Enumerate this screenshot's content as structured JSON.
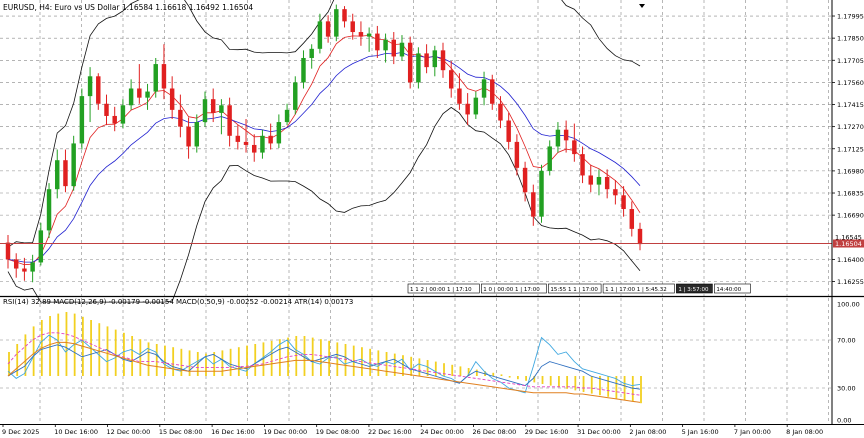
{
  "header": {
    "title": "EURUSD, H4: Euro vs US Dollar  1.16584 1.16618 1.16492 1.16504"
  },
  "main_panel": {
    "price_ticks": [
      "1.17995",
      "1.17850",
      "1.17705",
      "1.17560",
      "1.17415",
      "1.17270",
      "1.17125",
      "1.16980",
      "1.16835",
      "1.16690",
      "1.16400",
      "1.16255"
    ],
    "current_price_label": "1.16504",
    "level_label": "1.16545",
    "info_boxes": [
      {
        "text": "1 1 2 | 00:00 1 | 17:10",
        "dark": false
      },
      {
        "text": "1 0 | 00:00 1 | 17:00",
        "dark": false
      },
      {
        "text": "15:55 1 1 | 17:00",
        "dark": false
      },
      {
        "text": "1 1 | 17:00 1 | 5:45.32",
        "dark": false
      },
      {
        "text": "1 | 3:57:00",
        "dark": true
      },
      {
        "text": "14:40:00",
        "dark": false
      }
    ]
  },
  "sub_panel": {
    "title": "RSI(14) 32.89 MACD(12,26,9) -0.00179 -0.00154 MACD(0.50,9) -0.00252 -0.00214 ATR(14) 0.00173",
    "ticks": [
      "100.00",
      "70.00",
      "30.00",
      "0.00"
    ]
  },
  "time_axis": {
    "labels": [
      "9 Dec 2025",
      "10 Dec 16:00",
      "12 Dec 00:00",
      "15 Dec 08:00",
      "16 Dec 16:00",
      "19 Dec 00:00",
      "19 Dec 08:00",
      "22 Dec 16:00",
      "24 Dec 00:00",
      "26 Dec 08:00",
      "29 Dec 16:00",
      "31 Dec 00:00",
      "2 Jan 08:00",
      "5 Jan 16:00",
      "7 Jan 00:00",
      "8 Jan 08:00"
    ]
  },
  "chart_data": {
    "type": "candlestick",
    "symbol": "EURUSD",
    "timeframe": "H4",
    "ohlc_last": {
      "open": 1.16584,
      "high": 1.16618,
      "low": 1.16492,
      "close": 1.16504
    },
    "ylim": [
      1.1616,
      1.181
    ],
    "candles": [
      {
        "o": 1.1651,
        "h": 1.1656,
        "l": 1.1634,
        "c": 1.164
      },
      {
        "o": 1.164,
        "h": 1.1644,
        "l": 1.1628,
        "c": 1.1634
      },
      {
        "o": 1.1634,
        "h": 1.1641,
        "l": 1.1626,
        "c": 1.1632
      },
      {
        "o": 1.1632,
        "h": 1.1643,
        "l": 1.1625,
        "c": 1.1638
      },
      {
        "o": 1.1638,
        "h": 1.1664,
        "l": 1.1636,
        "c": 1.1659
      },
      {
        "o": 1.1659,
        "h": 1.169,
        "l": 1.1654,
        "c": 1.1686
      },
      {
        "o": 1.1686,
        "h": 1.1712,
        "l": 1.168,
        "c": 1.1705
      },
      {
        "o": 1.1705,
        "h": 1.1712,
        "l": 1.1684,
        "c": 1.1688
      },
      {
        "o": 1.1688,
        "h": 1.1721,
        "l": 1.1685,
        "c": 1.1716
      },
      {
        "o": 1.1716,
        "h": 1.1752,
        "l": 1.1712,
        "c": 1.1747
      },
      {
        "o": 1.1747,
        "h": 1.1766,
        "l": 1.173,
        "c": 1.176
      },
      {
        "o": 1.176,
        "h": 1.1762,
        "l": 1.1738,
        "c": 1.1742
      },
      {
        "o": 1.1742,
        "h": 1.1748,
        "l": 1.1728,
        "c": 1.1734
      },
      {
        "o": 1.1734,
        "h": 1.174,
        "l": 1.1724,
        "c": 1.1729
      },
      {
        "o": 1.1729,
        "h": 1.1745,
        "l": 1.1726,
        "c": 1.1741
      },
      {
        "o": 1.1741,
        "h": 1.1758,
        "l": 1.1738,
        "c": 1.1752
      },
      {
        "o": 1.1752,
        "h": 1.1768,
        "l": 1.1742,
        "c": 1.1746
      },
      {
        "o": 1.1746,
        "h": 1.1755,
        "l": 1.1738,
        "c": 1.175
      },
      {
        "o": 1.175,
        "h": 1.1772,
        "l": 1.1746,
        "c": 1.1768
      },
      {
        "o": 1.1768,
        "h": 1.1781,
        "l": 1.1745,
        "c": 1.1752
      },
      {
        "o": 1.1752,
        "h": 1.176,
        "l": 1.1732,
        "c": 1.1738
      },
      {
        "o": 1.1738,
        "h": 1.1748,
        "l": 1.172,
        "c": 1.1727
      },
      {
        "o": 1.1727,
        "h": 1.1733,
        "l": 1.1706,
        "c": 1.1714
      },
      {
        "o": 1.1714,
        "h": 1.1735,
        "l": 1.171,
        "c": 1.173
      },
      {
        "o": 1.173,
        "h": 1.175,
        "l": 1.1727,
        "c": 1.1745
      },
      {
        "o": 1.1745,
        "h": 1.1752,
        "l": 1.173,
        "c": 1.1736
      },
      {
        "o": 1.1736,
        "h": 1.1745,
        "l": 1.1722,
        "c": 1.1741
      },
      {
        "o": 1.1741,
        "h": 1.1746,
        "l": 1.1714,
        "c": 1.1721
      },
      {
        "o": 1.1721,
        "h": 1.1728,
        "l": 1.1712,
        "c": 1.1717
      },
      {
        "o": 1.1717,
        "h": 1.1732,
        "l": 1.171,
        "c": 1.1715
      },
      {
        "o": 1.1715,
        "h": 1.1722,
        "l": 1.1704,
        "c": 1.171
      },
      {
        "o": 1.171,
        "h": 1.1725,
        "l": 1.1706,
        "c": 1.1721
      },
      {
        "o": 1.1721,
        "h": 1.1729,
        "l": 1.1712,
        "c": 1.1716
      },
      {
        "o": 1.1716,
        "h": 1.1735,
        "l": 1.1713,
        "c": 1.173
      },
      {
        "o": 1.173,
        "h": 1.1742,
        "l": 1.1728,
        "c": 1.1738
      },
      {
        "o": 1.1738,
        "h": 1.176,
        "l": 1.1735,
        "c": 1.1756
      },
      {
        "o": 1.1756,
        "h": 1.1777,
        "l": 1.1752,
        "c": 1.1772
      },
      {
        "o": 1.1772,
        "h": 1.1781,
        "l": 1.1765,
        "c": 1.1778
      },
      {
        "o": 1.1778,
        "h": 1.1801,
        "l": 1.1775,
        "c": 1.1796
      },
      {
        "o": 1.1796,
        "h": 1.18,
        "l": 1.1782,
        "c": 1.1786
      },
      {
        "o": 1.1786,
        "h": 1.1807,
        "l": 1.1783,
        "c": 1.1804
      },
      {
        "o": 1.1804,
        "h": 1.1806,
        "l": 1.1792,
        "c": 1.1796
      },
      {
        "o": 1.1796,
        "h": 1.1801,
        "l": 1.1784,
        "c": 1.1789
      },
      {
        "o": 1.1789,
        "h": 1.1796,
        "l": 1.178,
        "c": 1.1786
      },
      {
        "o": 1.1786,
        "h": 1.1792,
        "l": 1.1776,
        "c": 1.1788
      },
      {
        "o": 1.1788,
        "h": 1.1793,
        "l": 1.1772,
        "c": 1.1777
      },
      {
        "o": 1.1777,
        "h": 1.1788,
        "l": 1.1769,
        "c": 1.1784
      },
      {
        "o": 1.1784,
        "h": 1.1789,
        "l": 1.1768,
        "c": 1.1773
      },
      {
        "o": 1.1773,
        "h": 1.1787,
        "l": 1.177,
        "c": 1.1782
      },
      {
        "o": 1.1782,
        "h": 1.1786,
        "l": 1.1752,
        "c": 1.1756
      },
      {
        "o": 1.1756,
        "h": 1.1779,
        "l": 1.1752,
        "c": 1.1775
      },
      {
        "o": 1.1775,
        "h": 1.1781,
        "l": 1.1762,
        "c": 1.1766
      },
      {
        "o": 1.1766,
        "h": 1.178,
        "l": 1.176,
        "c": 1.1777
      },
      {
        "o": 1.1777,
        "h": 1.1782,
        "l": 1.1759,
        "c": 1.1764
      },
      {
        "o": 1.1764,
        "h": 1.177,
        "l": 1.1746,
        "c": 1.1752
      },
      {
        "o": 1.1752,
        "h": 1.1762,
        "l": 1.1738,
        "c": 1.1742
      },
      {
        "o": 1.1742,
        "h": 1.1749,
        "l": 1.1728,
        "c": 1.1735
      },
      {
        "o": 1.1735,
        "h": 1.175,
        "l": 1.1732,
        "c": 1.1746
      },
      {
        "o": 1.1746,
        "h": 1.1763,
        "l": 1.1741,
        "c": 1.1758
      },
      {
        "o": 1.1758,
        "h": 1.1761,
        "l": 1.1738,
        "c": 1.1742
      },
      {
        "o": 1.1742,
        "h": 1.1747,
        "l": 1.1726,
        "c": 1.1731
      },
      {
        "o": 1.1731,
        "h": 1.1736,
        "l": 1.1712,
        "c": 1.1717
      },
      {
        "o": 1.1717,
        "h": 1.1722,
        "l": 1.1695,
        "c": 1.17
      },
      {
        "o": 1.17,
        "h": 1.1704,
        "l": 1.1678,
        "c": 1.1684
      },
      {
        "o": 1.1684,
        "h": 1.1689,
        "l": 1.1662,
        "c": 1.1668
      },
      {
        "o": 1.1668,
        "h": 1.1702,
        "l": 1.1664,
        "c": 1.1698
      },
      {
        "o": 1.1698,
        "h": 1.1718,
        "l": 1.1695,
        "c": 1.1714
      },
      {
        "o": 1.1714,
        "h": 1.173,
        "l": 1.171,
        "c": 1.1725
      },
      {
        "o": 1.1725,
        "h": 1.1731,
        "l": 1.171,
        "c": 1.1718
      },
      {
        "o": 1.1718,
        "h": 1.1729,
        "l": 1.1704,
        "c": 1.1709
      },
      {
        "o": 1.1709,
        "h": 1.1714,
        "l": 1.169,
        "c": 1.1695
      },
      {
        "o": 1.1695,
        "h": 1.1702,
        "l": 1.1684,
        "c": 1.1689
      },
      {
        "o": 1.1689,
        "h": 1.1699,
        "l": 1.1682,
        "c": 1.1694
      },
      {
        "o": 1.1694,
        "h": 1.1699,
        "l": 1.168,
        "c": 1.1686
      },
      {
        "o": 1.1686,
        "h": 1.1692,
        "l": 1.1676,
        "c": 1.1682
      },
      {
        "o": 1.1682,
        "h": 1.1688,
        "l": 1.1668,
        "c": 1.1673
      },
      {
        "o": 1.1673,
        "h": 1.1678,
        "l": 1.1655,
        "c": 1.166
      },
      {
        "o": 1.166,
        "h": 1.1664,
        "l": 1.1646,
        "c": 1.165
      }
    ],
    "main_series_colors": {
      "bull": "#22a022",
      "bear": "#e02020",
      "bollinger": "#111111",
      "ma_fast": "#e02020",
      "ma_slow": "#2020d0",
      "price_line": "#c04040"
    },
    "macd_hist": [
      30,
      40,
      52,
      62,
      70,
      75,
      78,
      80,
      78,
      74,
      70,
      66,
      62,
      58,
      54,
      50,
      46,
      42,
      40,
      38,
      36,
      34,
      32,
      30,
      28,
      30,
      32,
      34,
      36,
      38,
      40,
      42,
      44,
      46,
      48,
      50,
      50,
      48,
      46,
      44,
      42,
      40,
      38,
      36,
      34,
      32,
      30,
      28,
      26,
      24,
      22,
      20,
      18,
      16,
      14,
      12,
      10,
      8,
      6,
      4,
      2,
      -2,
      -4,
      -6,
      -8,
      -10,
      -12,
      -14,
      -16,
      -18,
      -20,
      -22,
      -24,
      -26,
      -28,
      -30,
      -32,
      -34
    ],
    "rsi": [
      44,
      38,
      42,
      55,
      68,
      74,
      70,
      60,
      66,
      70,
      64,
      58,
      52,
      55,
      60,
      62,
      58,
      63,
      60,
      50,
      46,
      44,
      48,
      52,
      56,
      50,
      54,
      48,
      46,
      44,
      50,
      55,
      60,
      66,
      70,
      62,
      58,
      52,
      50,
      55,
      56,
      50,
      52,
      54,
      50,
      48,
      52,
      50,
      54,
      45,
      50,
      48,
      44,
      40,
      38,
      34,
      40,
      52,
      44,
      38,
      35,
      30,
      28,
      26,
      48,
      72,
      66,
      58,
      60,
      52,
      46,
      44,
      42,
      40,
      38,
      34,
      32,
      33
    ],
    "line2": [
      40,
      44,
      48,
      56,
      62,
      64,
      66,
      64,
      60,
      56,
      58,
      60,
      62,
      58,
      54,
      52,
      56,
      60,
      58,
      52,
      48,
      46,
      44,
      50,
      56,
      58,
      54,
      50,
      48,
      46,
      50,
      54,
      58,
      62,
      64,
      60,
      56,
      52,
      54,
      56,
      58,
      56,
      52,
      50,
      48,
      50,
      52,
      54,
      50,
      46,
      44,
      42,
      40,
      38,
      36,
      34,
      40,
      44,
      42,
      40,
      38,
      36,
      34,
      32,
      38,
      48,
      52,
      50,
      48,
      46,
      44,
      40,
      38,
      36,
      34,
      32,
      30,
      29
    ],
    "signal_dashed": [
      50,
      58,
      64,
      70,
      74,
      76,
      76,
      75,
      73,
      70,
      67,
      64,
      61,
      58,
      56,
      54,
      52,
      52,
      52,
      51,
      50,
      49,
      48,
      47,
      47,
      47,
      47,
      47,
      48,
      48,
      49,
      50,
      52,
      54,
      56,
      57,
      58,
      58,
      57,
      56,
      55,
      54,
      53,
      52,
      51,
      50,
      49,
      48,
      47,
      46,
      45,
      44,
      43,
      42,
      41,
      40,
      39,
      38,
      37,
      36,
      35,
      34,
      33,
      32,
      31,
      31,
      31,
      31,
      31,
      31,
      30,
      30,
      29,
      28,
      27,
      26,
      25,
      24
    ],
    "signal_solid": [
      40,
      46,
      52,
      58,
      63,
      66,
      68,
      68,
      67,
      65,
      63,
      61,
      59,
      57,
      55,
      53,
      51,
      49,
      48,
      47,
      46,
      45,
      44,
      44,
      44,
      44,
      44,
      45,
      46,
      47,
      48,
      49,
      50,
      51,
      52,
      53,
      53,
      53,
      52,
      51,
      50,
      49,
      48,
      47,
      46,
      45,
      44,
      43,
      42,
      41,
      40,
      39,
      38,
      37,
      36,
      35,
      34,
      33,
      32,
      31,
      30,
      29,
      28,
      27,
      26,
      26,
      26,
      26,
      26,
      25,
      25,
      24,
      23,
      22,
      21,
      20,
      19,
      18
    ]
  }
}
